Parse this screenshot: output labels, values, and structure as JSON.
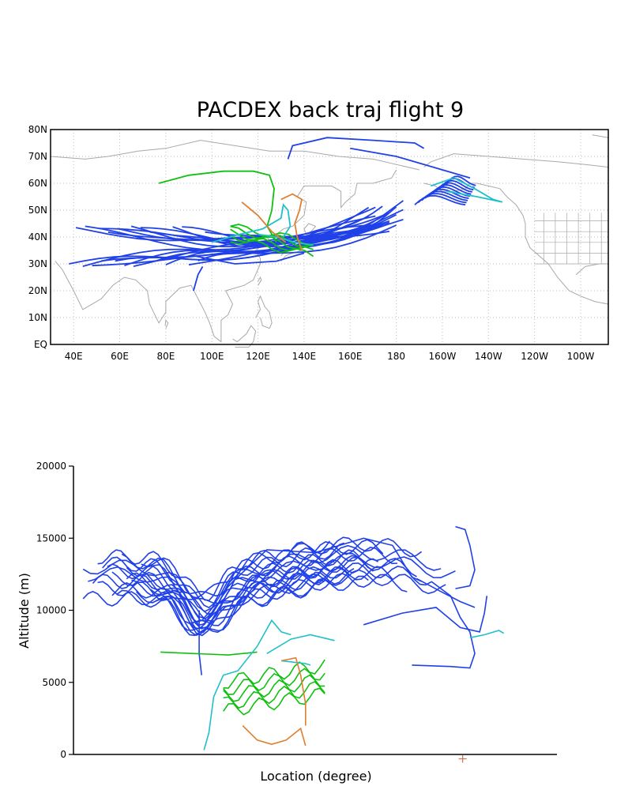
{
  "map_chart": {
    "title": "PACDEX back traj flight 9",
    "x_ticks": [
      "40E",
      "60E",
      "80E",
      "100E",
      "120E",
      "140E",
      "160E",
      "180",
      "160W",
      "140W",
      "120W",
      "100W"
    ],
    "x_tick_lon": [
      40,
      60,
      80,
      100,
      120,
      140,
      160,
      180,
      200,
      220,
      240,
      260
    ],
    "y_ticks": [
      "EQ",
      "10N",
      "20N",
      "30N",
      "40N",
      "50N",
      "60N",
      "70N",
      "80N"
    ],
    "y_tick_lat": [
      0,
      10,
      20,
      30,
      40,
      50,
      60,
      70,
      80
    ],
    "lon_range": [
      30,
      272
    ],
    "lat_range": [
      0,
      80
    ],
    "grid": "dotted"
  },
  "chart_data": {
    "type": "line",
    "xlabel": "Location (degree)",
    "ylabel": "Altitude (m)",
    "ylim": [
      0,
      20000
    ],
    "y_ticks": [
      "0",
      "5000",
      "10000",
      "15000",
      "20000"
    ],
    "y_tick_values": [
      0,
      5000,
      10000,
      15000,
      20000
    ],
    "xlim": [
      0,
      100
    ],
    "marker": {
      "x": 80.5,
      "y": -300,
      "color": "#d07050"
    },
    "colors": {
      "blue": "#2040e8",
      "cyan": "#20c0c8",
      "green": "#10c010",
      "orange": "#e07f30",
      "land": "#a8a8a8"
    }
  }
}
